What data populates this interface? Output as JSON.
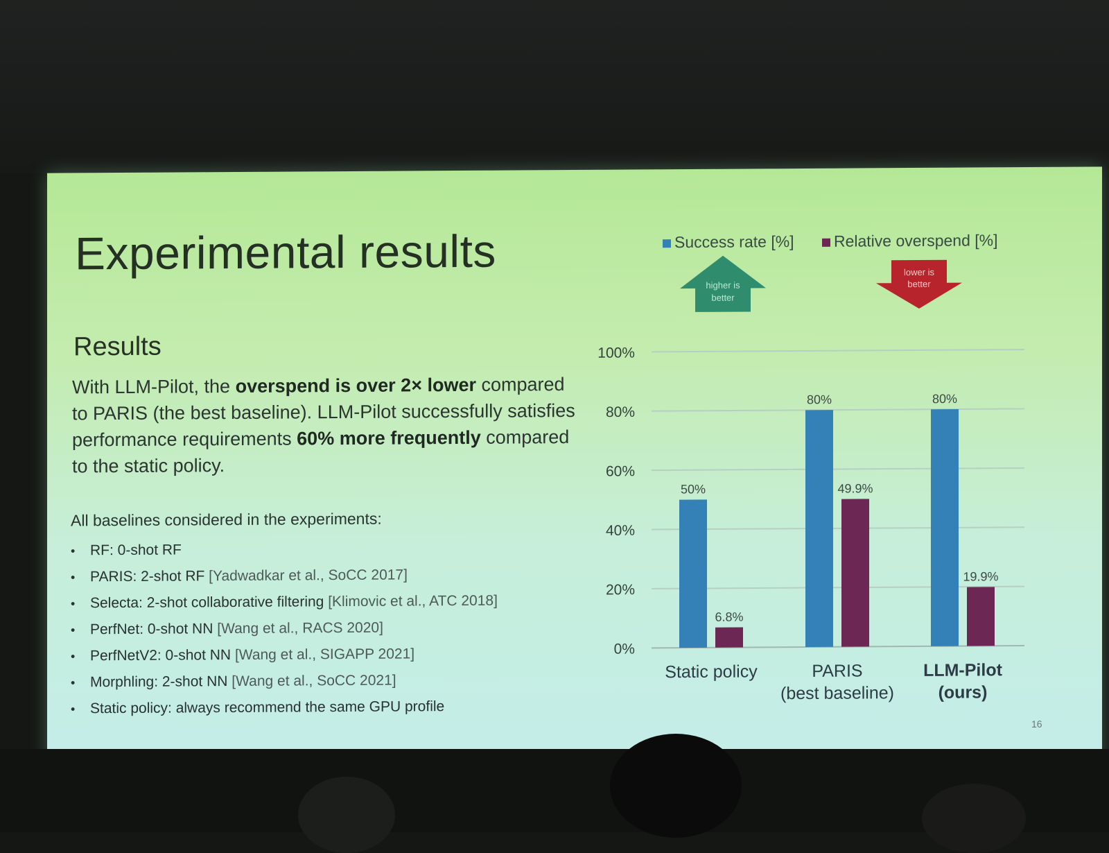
{
  "slide": {
    "title": "Experimental results",
    "section_heading": "Results",
    "summary": {
      "p1": "With LLM-Pilot, the ",
      "b1": "overspend is over 2× lower",
      "p2": " compared to PARIS (the best baseline). LLM-Pilot successfully satisfies performance requirements ",
      "b2": "60% more frequently",
      "p3": " compared to the static policy."
    },
    "baselines_heading": "All baselines considered in the experiments:",
    "baselines": [
      {
        "label": "RF: 0-shot RF",
        "cite": ""
      },
      {
        "label": "PARIS: 2-shot RF",
        "cite": "[Yadwadkar et al., SoCC 2017]"
      },
      {
        "label": "Selecta: 2-shot collaborative filtering",
        "cite": "[Klimovic et al., ATC 2018]"
      },
      {
        "label": "PerfNet: 0-shot NN",
        "cite": "[Wang et al., RACS 2020]"
      },
      {
        "label": "PerfNetV2: 0-shot NN",
        "cite": "[Wang et al., SIGAPP 2021]"
      },
      {
        "label": "Morphling: 2-shot NN",
        "cite": "[Wang et al., SoCC 2021]"
      },
      {
        "label": "Static policy: always recommend the same GPU profile",
        "cite": ""
      }
    ],
    "page_number": "16"
  },
  "chart_data": {
    "type": "bar",
    "categories": [
      "Static policy",
      "PARIS\n(best baseline)",
      "LLM-Pilot\n(ours)"
    ],
    "series": [
      {
        "name": "Success rate [%]",
        "values": [
          50,
          80,
          80
        ],
        "labels": [
          "50%",
          "80%",
          "80%"
        ],
        "color": "#3381b6"
      },
      {
        "name": "Relative overspend [%]",
        "values": [
          6.8,
          49.9,
          19.9
        ],
        "labels": [
          "6.8%",
          "49.9%",
          "19.9%"
        ],
        "color": "#6c2754"
      }
    ],
    "y_ticks": [
      "0%",
      "20%",
      "40%",
      "60%",
      "80%",
      "100%"
    ],
    "ylim": [
      0,
      100
    ],
    "grid": true,
    "legend": "top",
    "annotations": [
      {
        "text": "higher is better",
        "direction": "up",
        "color": "#2f8c6c"
      },
      {
        "text": "lower is better",
        "direction": "down",
        "color": "#b8242b"
      }
    ]
  }
}
